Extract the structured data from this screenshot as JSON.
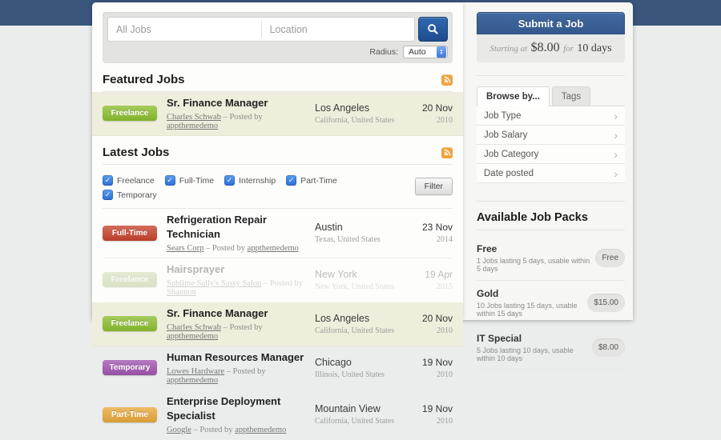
{
  "search": {
    "keywords_placeholder": "All Jobs",
    "location_placeholder": "Location",
    "radius_label": "Radius:",
    "radius_value": "Auto"
  },
  "sections": {
    "featured_title": "Featured Jobs",
    "latest_title": "Latest Jobs"
  },
  "filters": {
    "types": [
      "Freelance",
      "Full-Time",
      "Internship",
      "Part-Time",
      "Temporary"
    ],
    "button_label": "Filter"
  },
  "byline_separator": "–",
  "posted_by_label": "Posted by",
  "featured_jobs": [
    {
      "type": "Freelance",
      "title": "Sr. Finance Manager",
      "company": "Charles Schwab",
      "posted_by": "appthemedemo",
      "city": "Los Angeles",
      "region": "California, United States",
      "date": "20 Nov",
      "year": "2010",
      "featured": true
    }
  ],
  "latest_jobs": [
    {
      "type": "Full-Time",
      "title": "Refrigeration Repair Technician",
      "company": "Sears Corp",
      "posted_by": "appthemedemo",
      "city": "Austin",
      "region": "Texas, United States",
      "date": "23 Nov",
      "year": "2014"
    },
    {
      "type": "Freelance",
      "title": "Hairsprayer",
      "company": "Sublime Sally's Sassy Salon",
      "posted_by": "Shannon",
      "city": "New York",
      "region": "New York, United States",
      "date": "19 Apr",
      "year": "2015",
      "faded": true
    },
    {
      "type": "Freelance",
      "title": "Sr. Finance Manager",
      "company": "Charles Schwab",
      "posted_by": "appthemedemo",
      "city": "Los Angeles",
      "region": "California, United States",
      "date": "20 Nov",
      "year": "2010",
      "featured": true
    },
    {
      "type": "Temporary",
      "title": "Human Resources Manager",
      "company": "Lowes Hardware",
      "posted_by": "appthemedemo",
      "city": "Chicago",
      "region": "Illinois, United States",
      "date": "19 Nov",
      "year": "2010"
    },
    {
      "type": "Part-Time",
      "title": "Enterprise Deployment Specialist",
      "company": "Google",
      "posted_by": "appthemedemo",
      "city": "Mountain View",
      "region": "California, United States",
      "date": "19 Nov",
      "year": "2010"
    }
  ],
  "sidebar": {
    "submit_button": "Submit a Job",
    "pricing": {
      "prefix": "Starting at",
      "price": "$8.00",
      "middle": "for",
      "duration": "10 days"
    },
    "tabs": [
      "Browse by...",
      "Tags"
    ],
    "browse_items": [
      "Job Type",
      "Job Salary",
      "Job Category",
      "Date posted"
    ],
    "packs_title": "Available Job Packs",
    "packs": [
      {
        "name": "Free",
        "description": "1 Jobs lasting 5 days, usable within 5 days",
        "price": "Free"
      },
      {
        "name": "Gold",
        "description": "10 Jobs lasting 15 days, usable within 15 days",
        "price": "$15.00"
      },
      {
        "name": "IT Special",
        "description": "5 Jobs lasting 10 days, usable within 10 days",
        "price": "$8.00"
      }
    ]
  },
  "colors": {
    "header_band": "#3a567d",
    "submit_button_blue": "#35599f",
    "search_button_blue": "#1f549b",
    "featured_row_bg": "#efeedd",
    "rss_orange": "#f0a33e",
    "checkbox_blue": "#2d7be8",
    "badges": {
      "Freelance": "#8cbf2f",
      "Full-Time": "#c8432d",
      "Temporary": "#a155b0",
      "Part-Time": "#e8a93c"
    }
  }
}
